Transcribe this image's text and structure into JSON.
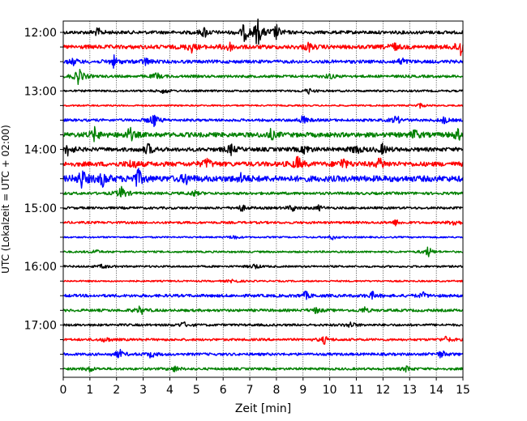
{
  "chart_data": {
    "type": "line",
    "xlabel": "Zeit  [min]",
    "ylabel": "UTC (Lokalzeit = UTC + 02:00)",
    "xlim": [
      0,
      15
    ],
    "x_ticks": [
      0,
      1,
      2,
      3,
      4,
      5,
      6,
      7,
      8,
      9,
      10,
      11,
      12,
      13,
      14,
      15
    ],
    "x_grid": "dotted",
    "row_interval_minutes": 15,
    "y_time_labels": [
      "12:00",
      "13:00",
      "14:00",
      "15:00",
      "16:00",
      "17:00"
    ],
    "trace_colors": [
      "#000000",
      "#ff0000",
      "#0000ff",
      "#008000"
    ],
    "traces": [
      {
        "start": "12:00",
        "color": "#000000",
        "base_amp": 0.25,
        "events": [
          {
            "t": 1.3,
            "a": 0.4
          },
          {
            "t": 5.3,
            "a": 0.55
          },
          {
            "t": 6.8,
            "a": 0.85
          },
          {
            "t": 7.3,
            "a": 1.5
          },
          {
            "t": 8.0,
            "a": 0.8
          }
        ]
      },
      {
        "start": "12:15",
        "color": "#ff0000",
        "base_amp": 0.3,
        "events": [
          {
            "t": 4.8,
            "a": 0.55
          },
          {
            "t": 6.2,
            "a": 0.6
          },
          {
            "t": 9.2,
            "a": 0.45
          },
          {
            "t": 12.4,
            "a": 0.45
          },
          {
            "t": 14.9,
            "a": 1.0
          }
        ]
      },
      {
        "start": "12:30",
        "color": "#0000ff",
        "base_amp": 0.25,
        "events": [
          {
            "t": 0.4,
            "a": 0.35
          },
          {
            "t": 1.9,
            "a": 0.6
          },
          {
            "t": 3.1,
            "a": 0.4
          },
          {
            "t": 12.7,
            "a": 0.4
          }
        ]
      },
      {
        "start": "12:45",
        "color": "#008000",
        "base_amp": 0.2,
        "events": [
          {
            "t": 0.6,
            "a": 1.0
          },
          {
            "t": 3.5,
            "a": 0.35
          },
          {
            "t": 10.0,
            "a": 0.3
          }
        ]
      },
      {
        "start": "13:00",
        "color": "#000000",
        "base_amp": 0.15,
        "events": [
          {
            "t": 3.8,
            "a": 0.3
          },
          {
            "t": 9.2,
            "a": 0.3
          }
        ]
      },
      {
        "start": "13:15",
        "color": "#ff0000",
        "base_amp": 0.12,
        "events": [
          {
            "t": 13.4,
            "a": 0.25
          }
        ]
      },
      {
        "start": "13:30",
        "color": "#0000ff",
        "base_amp": 0.2,
        "events": [
          {
            "t": 3.4,
            "a": 0.8
          },
          {
            "t": 9.0,
            "a": 0.45
          },
          {
            "t": 12.5,
            "a": 0.5
          },
          {
            "t": 14.3,
            "a": 0.35
          }
        ]
      },
      {
        "start": "13:45",
        "color": "#008000",
        "base_amp": 0.35,
        "events": [
          {
            "t": 1.2,
            "a": 0.75
          },
          {
            "t": 2.5,
            "a": 0.7
          },
          {
            "t": 7.8,
            "a": 0.5
          },
          {
            "t": 13.2,
            "a": 0.5
          },
          {
            "t": 14.8,
            "a": 0.6
          }
        ]
      },
      {
        "start": "14:00",
        "color": "#000000",
        "base_amp": 0.3,
        "events": [
          {
            "t": 0.2,
            "a": 0.7
          },
          {
            "t": 3.2,
            "a": 0.6
          },
          {
            "t": 6.3,
            "a": 0.55
          },
          {
            "t": 9.1,
            "a": 0.5
          },
          {
            "t": 11.0,
            "a": 0.55
          },
          {
            "t": 12.0,
            "a": 0.55
          }
        ]
      },
      {
        "start": "14:15",
        "color": "#ff0000",
        "base_amp": 0.35,
        "events": [
          {
            "t": 2.6,
            "a": 0.55
          },
          {
            "t": 5.4,
            "a": 0.6
          },
          {
            "t": 8.8,
            "a": 0.75
          },
          {
            "t": 10.5,
            "a": 0.65
          },
          {
            "t": 11.9,
            "a": 0.65
          }
        ]
      },
      {
        "start": "14:30",
        "color": "#0000ff",
        "base_amp": 0.45,
        "events": [
          {
            "t": 0.7,
            "a": 1.0
          },
          {
            "t": 1.5,
            "a": 0.75
          },
          {
            "t": 2.8,
            "a": 1.0
          },
          {
            "t": 4.6,
            "a": 0.5
          },
          {
            "t": 6.7,
            "a": 0.45
          }
        ]
      },
      {
        "start": "14:45",
        "color": "#008000",
        "base_amp": 0.2,
        "events": [
          {
            "t": 2.2,
            "a": 0.8
          },
          {
            "t": 4.9,
            "a": 0.3
          }
        ]
      },
      {
        "start": "15:00",
        "color": "#000000",
        "base_amp": 0.18,
        "events": [
          {
            "t": 6.7,
            "a": 0.35
          },
          {
            "t": 8.6,
            "a": 0.35
          },
          {
            "t": 9.6,
            "a": 0.25
          }
        ]
      },
      {
        "start": "15:15",
        "color": "#ff0000",
        "base_amp": 0.18,
        "events": [
          {
            "t": 12.5,
            "a": 0.3
          },
          {
            "t": 14.7,
            "a": 0.4
          }
        ]
      },
      {
        "start": "15:30",
        "color": "#0000ff",
        "base_amp": 0.12,
        "events": [
          {
            "t": 6.4,
            "a": 0.25
          },
          {
            "t": 10.1,
            "a": 0.25
          }
        ]
      },
      {
        "start": "15:45",
        "color": "#008000",
        "base_amp": 0.14,
        "events": [
          {
            "t": 1.2,
            "a": 0.25
          },
          {
            "t": 13.7,
            "a": 0.55
          }
        ]
      },
      {
        "start": "16:00",
        "color": "#000000",
        "base_amp": 0.15,
        "events": [
          {
            "t": 1.5,
            "a": 0.25
          },
          {
            "t": 7.2,
            "a": 0.3
          }
        ]
      },
      {
        "start": "16:15",
        "color": "#ff0000",
        "base_amp": 0.12,
        "events": [
          {
            "t": 6.4,
            "a": 0.3
          }
        ]
      },
      {
        "start": "16:30",
        "color": "#0000ff",
        "base_amp": 0.22,
        "events": [
          {
            "t": 9.1,
            "a": 0.4
          },
          {
            "t": 11.6,
            "a": 0.35
          },
          {
            "t": 13.5,
            "a": 0.3
          }
        ]
      },
      {
        "start": "16:45",
        "color": "#008000",
        "base_amp": 0.2,
        "events": [
          {
            "t": 2.9,
            "a": 0.45
          },
          {
            "t": 9.5,
            "a": 0.3
          },
          {
            "t": 11.3,
            "a": 0.3
          }
        ]
      },
      {
        "start": "17:00",
        "color": "#000000",
        "base_amp": 0.18,
        "events": [
          {
            "t": 4.5,
            "a": 0.3
          },
          {
            "t": 10.8,
            "a": 0.35
          }
        ]
      },
      {
        "start": "17:15",
        "color": "#ff0000",
        "base_amp": 0.18,
        "events": [
          {
            "t": 1.6,
            "a": 0.3
          },
          {
            "t": 9.8,
            "a": 0.4
          },
          {
            "t": 14.4,
            "a": 0.35
          }
        ]
      },
      {
        "start": "17:30",
        "color": "#0000ff",
        "base_amp": 0.2,
        "events": [
          {
            "t": 2.1,
            "a": 0.5
          },
          {
            "t": 3.3,
            "a": 0.35
          },
          {
            "t": 14.2,
            "a": 0.4
          }
        ]
      },
      {
        "start": "17:45",
        "color": "#008000",
        "base_amp": 0.18,
        "events": [
          {
            "t": 1.0,
            "a": 0.3
          },
          {
            "t": 4.2,
            "a": 0.3
          },
          {
            "t": 12.9,
            "a": 0.3
          }
        ]
      }
    ]
  }
}
